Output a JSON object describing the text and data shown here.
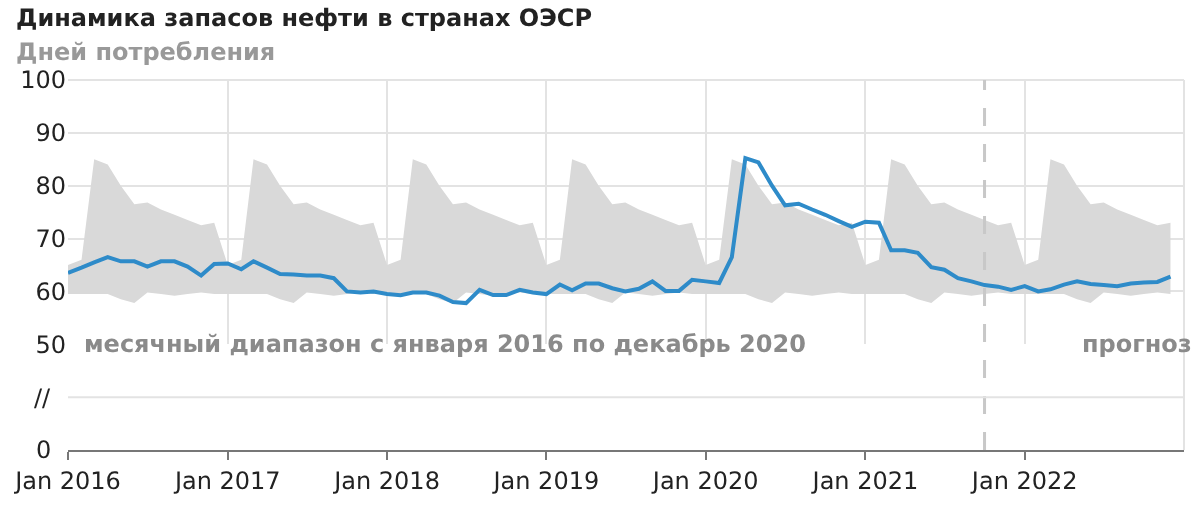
{
  "chart_data": {
    "type": "line",
    "title": "Динамика запасов нефти в странах ОЭСР",
    "subtitle": "Дней потребления",
    "x": [
      "2016-01",
      "2016-02",
      "2016-03",
      "2016-04",
      "2016-05",
      "2016-06",
      "2016-07",
      "2016-08",
      "2016-09",
      "2016-10",
      "2016-11",
      "2016-12",
      "2017-01",
      "2017-02",
      "2017-03",
      "2017-04",
      "2017-05",
      "2017-06",
      "2017-07",
      "2017-08",
      "2017-09",
      "2017-10",
      "2017-11",
      "2017-12",
      "2018-01",
      "2018-02",
      "2018-03",
      "2018-04",
      "2018-05",
      "2018-06",
      "2018-07",
      "2018-08",
      "2018-09",
      "2018-10",
      "2018-11",
      "2018-12",
      "2019-01",
      "2019-02",
      "2019-03",
      "2019-04",
      "2019-05",
      "2019-06",
      "2019-07",
      "2019-08",
      "2019-09",
      "2019-10",
      "2019-11",
      "2019-12",
      "2020-01",
      "2020-02",
      "2020-03",
      "2020-04",
      "2020-05",
      "2020-06",
      "2020-07",
      "2020-08",
      "2020-09",
      "2020-10",
      "2020-11",
      "2020-12",
      "2021-01",
      "2021-02",
      "2021-03",
      "2021-04",
      "2021-05",
      "2021-06",
      "2021-07",
      "2021-08",
      "2021-09",
      "2021-10",
      "2021-11",
      "2021-12",
      "2022-01",
      "2022-02",
      "2022-03",
      "2022-04",
      "2022-05",
      "2022-06",
      "2022-07",
      "2022-08",
      "2022-09",
      "2022-10",
      "2022-11",
      "2022-12"
    ],
    "series": [
      {
        "color": "#2e8bc9",
        "upper": [
          65,
          66,
          85,
          84,
          80,
          76.5,
          76.8,
          75.5,
          74.5,
          73.5,
          72.5,
          73,
          65,
          66,
          85,
          84,
          80,
          76.5,
          76.8,
          75.5,
          74.5,
          73.5,
          72.5,
          73,
          65,
          66,
          85,
          84,
          80,
          76.5,
          76.8,
          75.5,
          74.5,
          73.5,
          72.5,
          73,
          65,
          66,
          85,
          84,
          80,
          76.5,
          76.8,
          75.5,
          74.5,
          73.5,
          72.5,
          73,
          65,
          66,
          85,
          84,
          80,
          76.5,
          76.8,
          75.5,
          74.5,
          73.5,
          72.5,
          73,
          65,
          66,
          85,
          84,
          80,
          76.5,
          76.8,
          75.5,
          74.5,
          73.5,
          72.5,
          73,
          65,
          66,
          85,
          84,
          80,
          76.5,
          76.8,
          75.5,
          74.5,
          73.5,
          72.5,
          73
        ],
        "lower": [
          59.5,
          59.5,
          59.5,
          59.5,
          58.5,
          57.8,
          59.8,
          59.5,
          59.2,
          59.5,
          59.8,
          59.5,
          59.5,
          59.5,
          59.5,
          59.5,
          58.5,
          57.8,
          59.8,
          59.5,
          59.2,
          59.5,
          59.8,
          59.5,
          59.5,
          59.5,
          59.5,
          59.5,
          58.5,
          57.8,
          59.8,
          59.5,
          59.2,
          59.5,
          59.8,
          59.5,
          59.5,
          59.5,
          59.5,
          59.5,
          58.5,
          57.8,
          59.8,
          59.5,
          59.2,
          59.5,
          59.8,
          59.5,
          59.5,
          59.5,
          59.5,
          59.5,
          58.5,
          57.8,
          59.8,
          59.5,
          59.2,
          59.5,
          59.8,
          59.5,
          59.5,
          59.5,
          59.5,
          59.5,
          58.5,
          57.8,
          59.8,
          59.5,
          59.2,
          59.5,
          59.8,
          59.5,
          59.5,
          59.5,
          59.5,
          59.5,
          58.5,
          57.8,
          59.8,
          59.5,
          59.2,
          59.5,
          59.8,
          59.5
        ],
        "values": [
          63.5,
          64.5,
          65.5,
          66.5,
          65.7,
          65.7,
          64.7,
          65.7,
          65.7,
          64.7,
          63,
          65.2,
          65.3,
          64.2,
          65.7,
          64.5,
          63.3,
          63.2,
          63,
          63,
          62.5,
          60,
          59.8,
          60,
          59.5,
          59.3,
          59.8,
          59.8,
          59.2,
          58,
          57.8,
          60.3,
          59.3,
          59.3,
          60.3,
          59.8,
          59.5,
          61.3,
          60.2,
          61.5,
          61.5,
          60.6,
          60,
          60.5,
          61.9,
          60.1,
          60.1,
          62.2,
          61.9,
          61.6,
          66.5,
          85.2,
          84.4,
          80,
          76.3,
          76.6,
          75.5,
          74.5,
          73.3,
          72.2,
          73.2,
          73,
          67.8,
          67.8,
          67.3,
          64.6,
          64.1,
          62.5,
          61.9,
          61.2,
          60.9,
          60.3,
          61,
          60,
          60.4,
          61.3,
          61.9,
          61.4,
          61.2,
          61,
          61.5,
          61.7,
          61.8,
          62.8
        ]
      }
    ],
    "ylim": [
      50,
      100
    ],
    "yticks": [
      50,
      60,
      70,
      80,
      90,
      100
    ],
    "xlim": [
      "2016-01",
      "2023-01"
    ],
    "xticks": [
      {
        "value": "2016-01",
        "label": "Jan 2016"
      },
      {
        "value": "2017-01",
        "label": "Jan 2017"
      },
      {
        "value": "2018-01",
        "label": "Jan 2018"
      },
      {
        "value": "2019-01",
        "label": "Jan 2019"
      },
      {
        "value": "2020-01",
        "label": "Jan 2020"
      },
      {
        "value": "2021-01",
        "label": "Jan 2021"
      },
      {
        "value": "2022-01",
        "label": "Jan 2022"
      }
    ],
    "ref_lines": [
      {
        "axis": "x",
        "value": "2021-10",
        "color": "#c8c8c8",
        "line_style": "dashed"
      }
    ],
    "annotations": [
      "месячный диапазон с января 2016 по декабрь 2020",
      "прогноз",
      "//",
      "0"
    ],
    "grid": true,
    "marker": "none",
    "line_style": "solid"
  }
}
